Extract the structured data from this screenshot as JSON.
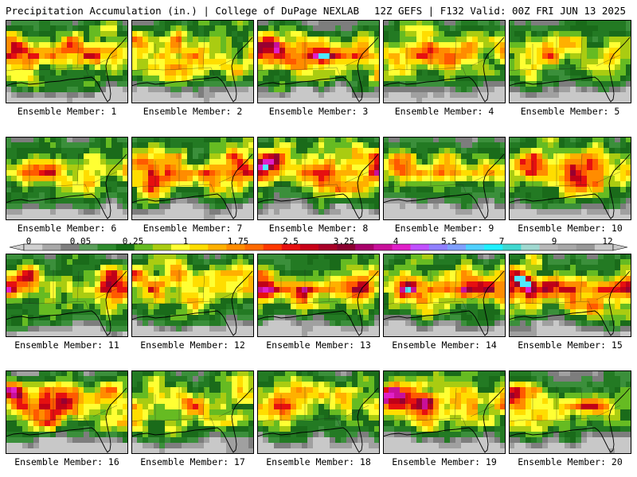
{
  "header": {
    "title": "Precipitation Accumulation (in.) | College of DuPage NEXLAB",
    "valid": "12Z GEFS | F132 Valid: 00Z FRI JUN 13 2025"
  },
  "color_scale": {
    "labels": [
      "0",
      "0.05",
      "0.25",
      "1",
      "1.75",
      "2.5",
      "3.25",
      "4",
      "5.5",
      "7",
      "9",
      "12"
    ],
    "colors": [
      "#d0d0d0",
      "#a8a8a8",
      "#7f7f7f",
      "#5a9e5a",
      "#2e8b2e",
      "#167016",
      "#66bb22",
      "#aacc11",
      "#ffff33",
      "#ffdd00",
      "#ffb000",
      "#ff8c00",
      "#ff6a00",
      "#ff3800",
      "#e61010",
      "#c80018",
      "#a80028",
      "#8a0030",
      "#a8006a",
      "#c8109a",
      "#e020c8",
      "#c050ff",
      "#9080ff",
      "#7fa0ff",
      "#50d0ff",
      "#20f0ff",
      "#40d8d0",
      "#a0d8d0",
      "#b8b8b8",
      "#a8a8a8",
      "#989898",
      "#c8c8c8"
    ]
  },
  "panels": [
    {
      "label": "Ensemble Member: 1",
      "seed": 11,
      "intensity": 0.85,
      "purple": 0.6
    },
    {
      "label": "Ensemble Member: 2",
      "seed": 23,
      "intensity": 0.8,
      "purple": 0.5
    },
    {
      "label": "Ensemble Member: 3",
      "seed": 37,
      "intensity": 1.0,
      "purple": 0.9
    },
    {
      "label": "Ensemble Member: 4",
      "seed": 41,
      "intensity": 0.55,
      "purple": 0.0
    },
    {
      "label": "Ensemble Member: 5",
      "seed": 53,
      "intensity": 0.55,
      "purple": 0.0
    },
    {
      "label": "Ensemble Member: 6",
      "seed": 67,
      "intensity": 0.5,
      "purple": 0.0
    },
    {
      "label": "Ensemble Member: 7",
      "seed": 71,
      "intensity": 0.85,
      "purple": 0.3
    },
    {
      "label": "Ensemble Member: 8",
      "seed": 83,
      "intensity": 0.95,
      "purple": 0.5
    },
    {
      "label": "Ensemble Member: 9",
      "seed": 97,
      "intensity": 0.55,
      "purple": 0.4
    },
    {
      "label": "Ensemble Member: 10",
      "seed": 101,
      "intensity": 0.8,
      "purple": 0.5
    },
    {
      "label": "Ensemble Member: 11",
      "seed": 113,
      "intensity": 0.85,
      "purple": 0.6
    },
    {
      "label": "Ensemble Member: 12",
      "seed": 127,
      "intensity": 0.8,
      "purple": 0.4
    },
    {
      "label": "Ensemble Member: 13",
      "seed": 131,
      "intensity": 0.9,
      "purple": 0.3
    },
    {
      "label": "Ensemble Member: 14",
      "seed": 149,
      "intensity": 0.8,
      "purple": 0.3
    },
    {
      "label": "Ensemble Member: 15",
      "seed": 151,
      "intensity": 0.9,
      "purple": 0.7
    },
    {
      "label": "Ensemble Member: 16",
      "seed": 163,
      "intensity": 0.95,
      "purple": 0.8
    },
    {
      "label": "Ensemble Member: 17",
      "seed": 173,
      "intensity": 0.7,
      "purple": 0.1
    },
    {
      "label": "Ensemble Member: 18",
      "seed": 181,
      "intensity": 0.6,
      "purple": 0.1
    },
    {
      "label": "Ensemble Member: 19",
      "seed": 191,
      "intensity": 0.9,
      "purple": 0.9
    },
    {
      "label": "Ensemble Member: 20",
      "seed": 199,
      "intensity": 0.8,
      "purple": 0.4
    }
  ]
}
